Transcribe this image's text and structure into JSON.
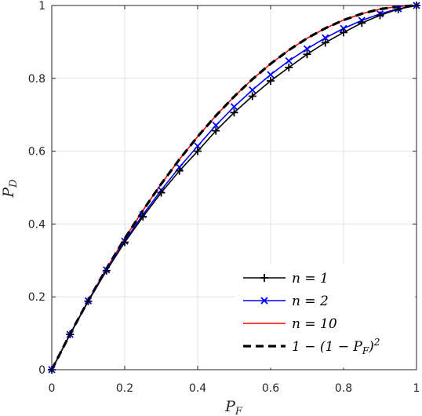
{
  "chart_data": {
    "type": "line",
    "xlabel": "P_F",
    "ylabel": "P_D",
    "xlim": [
      0,
      1
    ],
    "ylim": [
      0,
      1
    ],
    "xticks": [
      0,
      0.2,
      0.4,
      0.6,
      0.8,
      1
    ],
    "yticks": [
      0,
      0.2,
      0.4,
      0.6,
      0.8,
      1
    ],
    "xtick_labels": [
      "0",
      "0.2",
      "0.4",
      "0.6",
      "0.8",
      "1"
    ],
    "ytick_labels": [
      "0",
      "0.2",
      "0.4",
      "0.6",
      "0.8",
      "1"
    ],
    "grid": true,
    "legend_position": "bottom-right",
    "series": [
      {
        "name": "n = 1",
        "color": "#000000",
        "line_style": "solid",
        "marker": "plus",
        "x": [
          0,
          0.05,
          0.1,
          0.15,
          0.2,
          0.25,
          0.3,
          0.35,
          0.4,
          0.45,
          0.5,
          0.55,
          0.6,
          0.65,
          0.7,
          0.75,
          0.8,
          0.85,
          0.9,
          0.95,
          1
        ],
        "y": [
          0,
          0.097,
          0.188,
          0.272,
          0.35,
          0.42,
          0.486,
          0.546,
          0.6,
          0.656,
          0.706,
          0.751,
          0.793,
          0.83,
          0.866,
          0.898,
          0.926,
          0.952,
          0.973,
          0.99,
          1
        ]
      },
      {
        "name": "n = 2",
        "color": "#0000ff",
        "line_style": "solid",
        "marker": "x",
        "x": [
          0,
          0.05,
          0.1,
          0.15,
          0.2,
          0.25,
          0.3,
          0.35,
          0.4,
          0.45,
          0.5,
          0.55,
          0.6,
          0.65,
          0.7,
          0.75,
          0.8,
          0.85,
          0.9,
          0.95,
          1
        ],
        "y": [
          0,
          0.097,
          0.189,
          0.274,
          0.353,
          0.426,
          0.493,
          0.556,
          0.614,
          0.671,
          0.722,
          0.768,
          0.81,
          0.848,
          0.881,
          0.911,
          0.937,
          0.959,
          0.977,
          0.991,
          1
        ]
      },
      {
        "name": "n = 10",
        "color": "#ff0000",
        "line_style": "solid",
        "marker": "none",
        "x": [
          0,
          0.05,
          0.1,
          0.15,
          0.2,
          0.25,
          0.3,
          0.35,
          0.4,
          0.45,
          0.5,
          0.55,
          0.6,
          0.65,
          0.7,
          0.75,
          0.8,
          0.85,
          0.9,
          0.95,
          1
        ],
        "y": [
          0,
          0.0975,
          0.19,
          0.2775,
          0.36,
          0.4375,
          0.51,
          0.5775,
          0.64,
          0.6975,
          0.75,
          0.7975,
          0.84,
          0.8775,
          0.91,
          0.9375,
          0.96,
          0.9775,
          0.99,
          0.9975,
          1
        ]
      },
      {
        "name": "1 − (1 − P_F)^2",
        "color": "#000000",
        "line_style": "dashed",
        "marker": "none",
        "x": [
          0,
          0.05,
          0.1,
          0.15,
          0.2,
          0.25,
          0.3,
          0.35,
          0.4,
          0.45,
          0.5,
          0.55,
          0.6,
          0.65,
          0.7,
          0.75,
          0.8,
          0.85,
          0.9,
          0.95,
          1
        ],
        "y": [
          0,
          0.0975,
          0.19,
          0.2775,
          0.36,
          0.4375,
          0.51,
          0.5775,
          0.64,
          0.6975,
          0.75,
          0.7975,
          0.84,
          0.8775,
          0.91,
          0.9375,
          0.96,
          0.9775,
          0.99,
          0.9975,
          1
        ]
      }
    ]
  }
}
